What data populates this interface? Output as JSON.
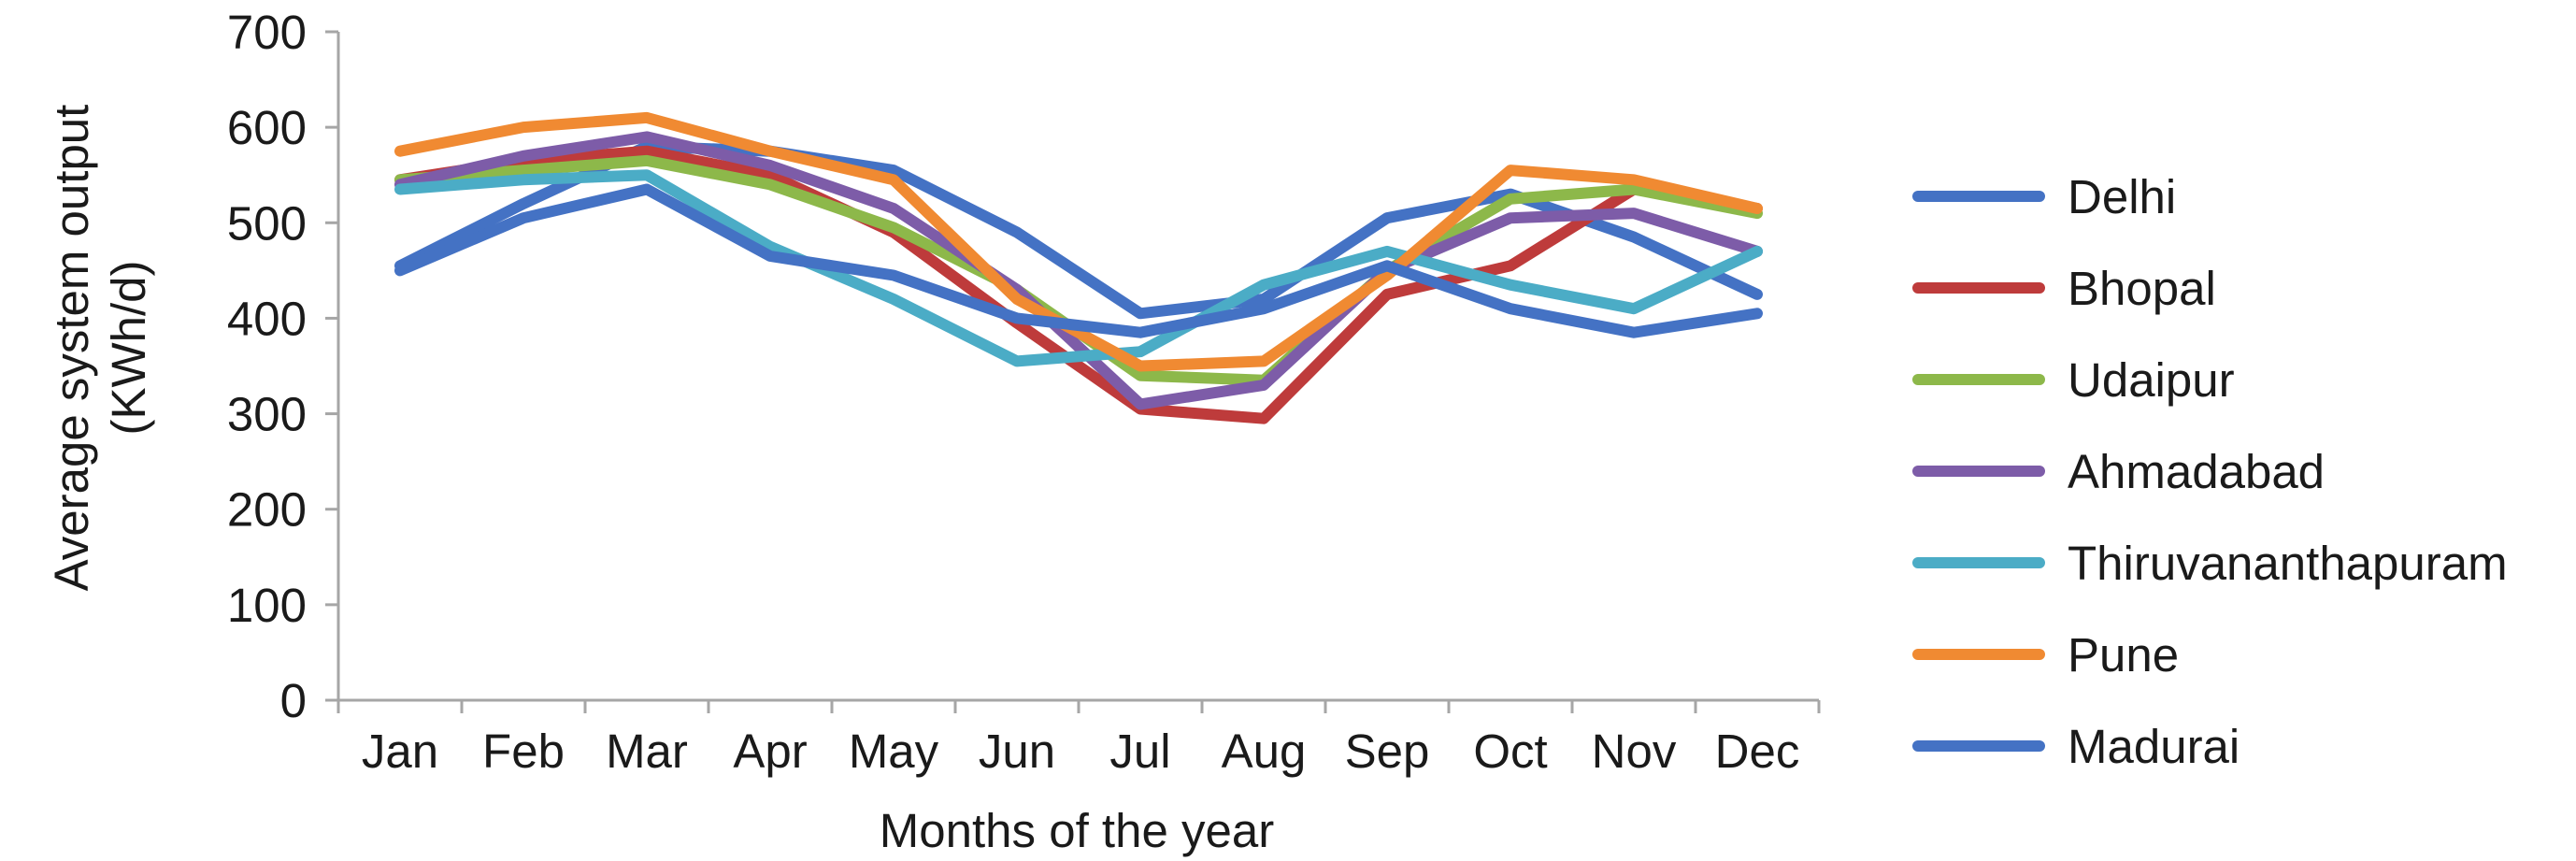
{
  "chart_data": {
    "type": "line",
    "title": "",
    "xlabel": "Months of the year",
    "ylabel_lines": [
      "Average system output",
      "(KWh/d)"
    ],
    "ylim": [
      0,
      700
    ],
    "yticks": [
      0,
      100,
      200,
      300,
      400,
      500,
      600,
      700
    ],
    "categories": [
      "Jan",
      "Feb",
      "Mar",
      "Apr",
      "May",
      "Jun",
      "Jul",
      "Aug",
      "Sep",
      "Oct",
      "Nov",
      "Dec"
    ],
    "grid": false,
    "legend_position": "right",
    "series": [
      {
        "name": "Delhi",
        "color": "#4472c4",
        "values": [
          455,
          520,
          580,
          575,
          555,
          490,
          405,
          420,
          505,
          530,
          485,
          425
        ]
      },
      {
        "name": "Bhopal",
        "color": "#be3b3b",
        "values": [
          545,
          565,
          575,
          550,
          490,
          395,
          305,
          295,
          425,
          455,
          535,
          515
        ]
      },
      {
        "name": "Udaipur",
        "color": "#8db84a",
        "values": [
          545,
          555,
          565,
          540,
          495,
          430,
          340,
          335,
          450,
          525,
          535,
          510
        ]
      },
      {
        "name": "Ahmadabad",
        "color": "#7d5ca8",
        "values": [
          540,
          570,
          590,
          560,
          515,
          430,
          310,
          330,
          450,
          505,
          510,
          470
        ]
      },
      {
        "name": "Thiruvananthapuram",
        "color": "#4bacc6",
        "values": [
          535,
          545,
          550,
          475,
          420,
          355,
          365,
          435,
          470,
          435,
          410,
          470
        ]
      },
      {
        "name": "Pune",
        "color": "#f08a32",
        "values": [
          575,
          600,
          610,
          575,
          545,
          420,
          350,
          355,
          445,
          555,
          545,
          515
        ]
      },
      {
        "name": "Madurai",
        "color": "#4472c4",
        "values": [
          450,
          505,
          535,
          465,
          445,
          400,
          385,
          410,
          455,
          410,
          385,
          405
        ]
      }
    ]
  }
}
